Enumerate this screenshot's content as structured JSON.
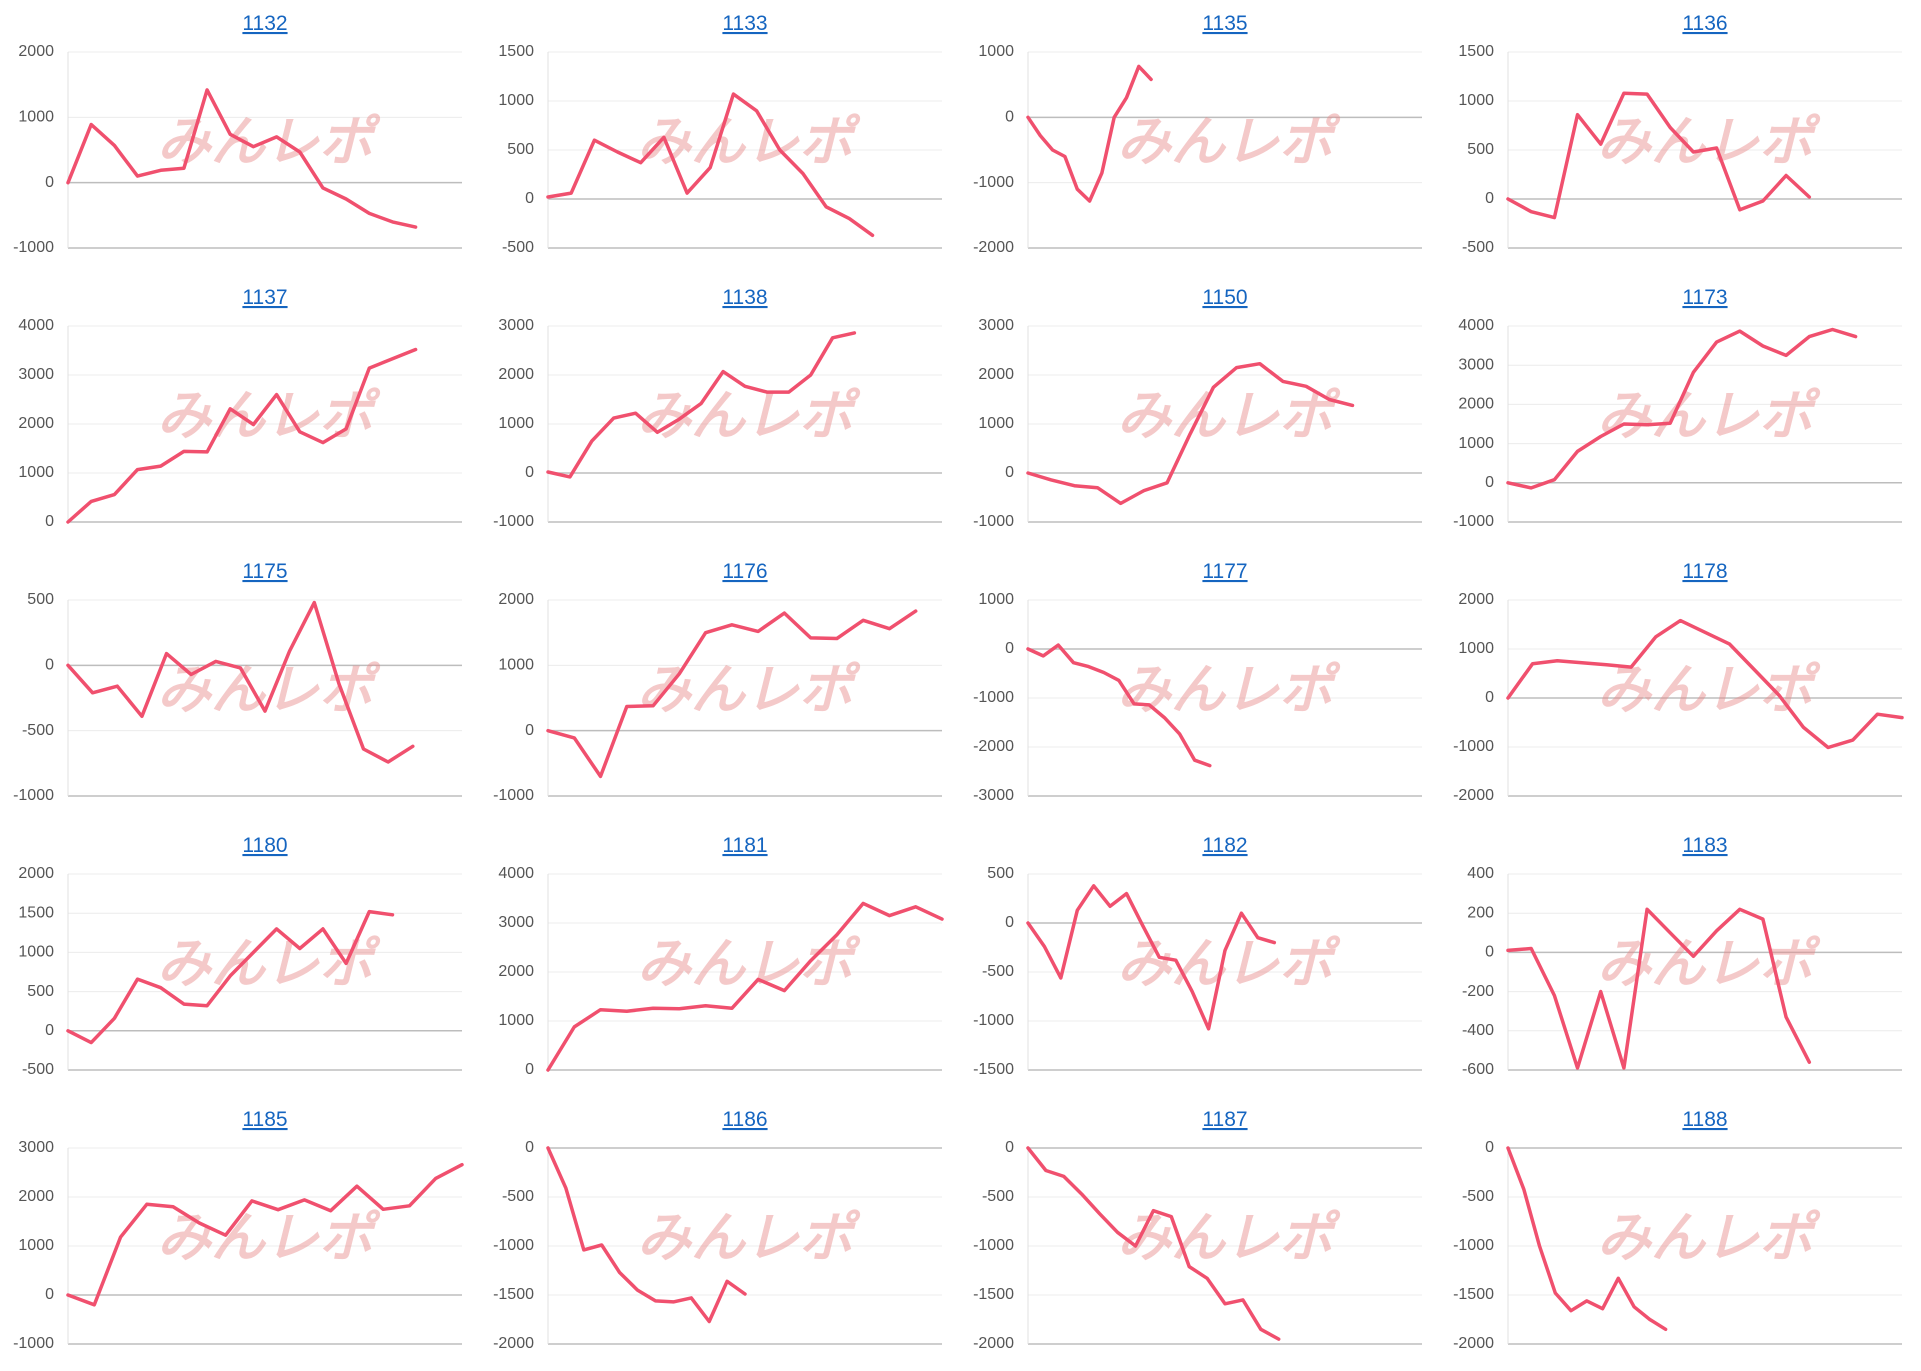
{
  "watermark": "みんレポ",
  "chart_data": [
    {
      "type": "line",
      "title": "1132",
      "color": "#f0506e",
      "grid": true,
      "ylim": [
        -1000,
        2000
      ],
      "yticks": [
        -1000,
        0,
        1000,
        2000
      ],
      "values": [
        0,
        890,
        570,
        100,
        190,
        220,
        1420,
        740,
        550,
        700,
        470,
        -80,
        -250,
        -470,
        -600,
        -680,
        null,
        null
      ]
    },
    {
      "type": "line",
      "title": "1133",
      "color": "#f0506e",
      "grid": true,
      "ylim": [
        -500,
        1500
      ],
      "yticks": [
        -500,
        0,
        500,
        1000,
        1500
      ],
      "values": [
        20,
        60,
        600,
        480,
        370,
        630,
        60,
        320,
        1070,
        900,
        500,
        260,
        -80,
        -200,
        -370,
        null,
        null,
        null
      ]
    },
    {
      "type": "line",
      "title": "1135",
      "color": "#f0506e",
      "grid": true,
      "ylim": [
        -2000,
        1000
      ],
      "yticks": [
        -2000,
        -1000,
        0,
        1000
      ],
      "values": [
        0,
        -280,
        -500,
        -600,
        -1100,
        -1280,
        -850,
        0,
        300,
        780,
        580,
        null,
        null,
        null,
        null,
        null,
        null,
        null,
        null,
        null,
        null,
        null,
        null,
        null,
        null,
        null,
        null,
        null,
        null,
        null,
        null,
        null,
        null
      ]
    },
    {
      "type": "line",
      "title": "1136",
      "color": "#f0506e",
      "grid": true,
      "ylim": [
        -500,
        1500
      ],
      "yticks": [
        -500,
        0,
        500,
        1000,
        1500
      ],
      "values": [
        0,
        -130,
        -190,
        860,
        560,
        1080,
        1070,
        730,
        480,
        520,
        -110,
        -20,
        240,
        20,
        null,
        null,
        null,
        null
      ]
    },
    {
      "type": "line",
      "title": "1137",
      "color": "#f0506e",
      "grid": true,
      "ylim": [
        0,
        4000
      ],
      "yticks": [
        0,
        1000,
        2000,
        3000,
        4000
      ],
      "values": [
        0,
        420,
        560,
        1070,
        1140,
        1440,
        1430,
        2310,
        1990,
        2600,
        1840,
        1620,
        1900,
        3140,
        3330,
        3520,
        null,
        null
      ]
    },
    {
      "type": "line",
      "title": "1138",
      "color": "#f0506e",
      "grid": true,
      "ylim": [
        -1000,
        3000
      ],
      "yticks": [
        -1000,
        0,
        1000,
        2000,
        3000
      ],
      "values": [
        20,
        -80,
        650,
        1120,
        1220,
        830,
        1100,
        1420,
        2070,
        1770,
        1650,
        1650,
        2000,
        2760,
        2860,
        null,
        null,
        null,
        null
      ]
    },
    {
      "type": "line",
      "title": "1150",
      "color": "#f0506e",
      "grid": true,
      "ylim": [
        -1000,
        3000
      ],
      "yticks": [
        -1000,
        0,
        1000,
        2000,
        3000
      ],
      "values": [
        0,
        -140,
        -260,
        -300,
        -620,
        -360,
        -200,
        800,
        1750,
        2150,
        2230,
        1870,
        1770,
        1500,
        1380,
        null,
        null,
        null
      ]
    },
    {
      "type": "line",
      "title": "1173",
      "color": "#f0506e",
      "grid": true,
      "ylim": [
        -1000,
        4000
      ],
      "yticks": [
        -1000,
        0,
        1000,
        2000,
        3000,
        4000
      ],
      "values": [
        0,
        -130,
        80,
        800,
        1180,
        1500,
        1480,
        1520,
        2820,
        3590,
        3870,
        3490,
        3250,
        3730,
        3910,
        3730,
        null,
        null
      ]
    },
    {
      "type": "line",
      "title": "1175",
      "color": "#f0506e",
      "grid": true,
      "ylim": [
        -1000,
        500
      ],
      "yticks": [
        -1000,
        -500,
        0,
        500
      ],
      "values": [
        0,
        -210,
        -160,
        -390,
        90,
        -70,
        30,
        -20,
        -350,
        110,
        480,
        -140,
        -640,
        -740,
        -620,
        null,
        null
      ]
    },
    {
      "type": "line",
      "title": "1176",
      "color": "#f0506e",
      "grid": true,
      "ylim": [
        -1000,
        2000
      ],
      "yticks": [
        -1000,
        0,
        1000,
        2000
      ],
      "values": [
        0,
        -110,
        -700,
        370,
        380,
        870,
        1500,
        1620,
        1520,
        1800,
        1420,
        1410,
        1690,
        1560,
        1830,
        null
      ]
    },
    {
      "type": "line",
      "title": "1177",
      "color": "#f0506e",
      "grid": true,
      "ylim": [
        -3000,
        1000
      ],
      "yticks": [
        -3000,
        -2000,
        -1000,
        0,
        1000
      ],
      "values": [
        0,
        -140,
        80,
        -280,
        -360,
        -480,
        -640,
        -1120,
        -1140,
        -1400,
        -1730,
        -2270,
        -2380,
        null,
        null,
        null,
        null,
        null,
        null,
        null,
        null,
        null,
        null,
        null,
        null,
        null,
        null
      ]
    },
    {
      "type": "line",
      "title": "1178",
      "color": "#f0506e",
      "grid": true,
      "ylim": [
        -2000,
        2000
      ],
      "yticks": [
        -2000,
        -1000,
        0,
        1000,
        2000
      ],
      "values": [
        0,
        700,
        760,
        720,
        680,
        630,
        1250,
        1580,
        1340,
        1100,
        580,
        60,
        -600,
        -1010,
        -860,
        -330,
        -400
      ]
    },
    {
      "type": "line",
      "title": "1180",
      "color": "#f0506e",
      "grid": true,
      "ylim": [
        -500,
        2000
      ],
      "yticks": [
        -500,
        0,
        500,
        1000,
        1500,
        2000
      ],
      "values": [
        0,
        -150,
        160,
        660,
        550,
        340,
        320,
        700,
        1000,
        1300,
        1050,
        1300,
        860,
        1520,
        1480,
        null,
        null,
        null
      ]
    },
    {
      "type": "line",
      "title": "1181",
      "color": "#f0506e",
      "grid": true,
      "ylim": [
        0,
        4000
      ],
      "yticks": [
        0,
        1000,
        2000,
        3000,
        4000
      ],
      "values": [
        0,
        880,
        1230,
        1200,
        1260,
        1250,
        1310,
        1260,
        1850,
        1620,
        2230,
        2760,
        3400,
        3150,
        3330,
        3080
      ]
    },
    {
      "type": "line",
      "title": "1182",
      "color": "#f0506e",
      "grid": true,
      "ylim": [
        -1500,
        500
      ],
      "yticks": [
        -1500,
        -1000,
        -500,
        0,
        500
      ],
      "values": [
        0,
        -240,
        -560,
        130,
        380,
        170,
        300,
        -30,
        -350,
        -380,
        -700,
        -1080,
        -280,
        100,
        -150,
        -200,
        null,
        null,
        null,
        null,
        null,
        null,
        null,
        null,
        null
      ]
    },
    {
      "type": "line",
      "title": "1183",
      "color": "#f0506e",
      "grid": true,
      "ylim": [
        -600,
        400
      ],
      "yticks": [
        -600,
        -400,
        -200,
        0,
        200,
        400
      ],
      "values": [
        10,
        20,
        -220,
        -590,
        -200,
        -590,
        220,
        100,
        -20,
        110,
        220,
        170,
        -330,
        -560,
        null,
        null,
        null,
        null
      ]
    },
    {
      "type": "line",
      "title": "1185",
      "color": "#f0506e",
      "grid": true,
      "ylim": [
        -1000,
        3000
      ],
      "yticks": [
        -1000,
        0,
        1000,
        2000,
        3000
      ],
      "values": [
        0,
        -200,
        1180,
        1850,
        1800,
        1470,
        1220,
        1920,
        1740,
        1940,
        1720,
        2220,
        1750,
        1820,
        2380,
        2660
      ]
    },
    {
      "type": "line",
      "title": "1186",
      "color": "#f0506e",
      "grid": true,
      "ylim": [
        -2000,
        0
      ],
      "yticks": [
        -2000,
        -1500,
        -1000,
        -500,
        0
      ],
      "values": [
        0,
        -410,
        -1040,
        -990,
        -1270,
        -1450,
        -1560,
        -1570,
        -1530,
        -1770,
        -1360,
        -1490,
        null,
        null,
        null,
        null,
        null,
        null,
        null,
        null,
        null,
        null,
        null
      ]
    },
    {
      "type": "line",
      "title": "1187",
      "color": "#f0506e",
      "grid": true,
      "ylim": [
        -2000,
        0
      ],
      "yticks": [
        -2000,
        -1500,
        -1000,
        -500,
        0
      ],
      "values": [
        0,
        -230,
        -290,
        -470,
        -670,
        -860,
        -1000,
        -640,
        -700,
        -1210,
        -1330,
        -1590,
        -1550,
        -1850,
        -1950,
        null,
        null,
        null,
        null,
        null,
        null,
        null,
        null
      ]
    },
    {
      "type": "line",
      "title": "1188",
      "color": "#f0506e",
      "grid": true,
      "ylim": [
        -2000,
        0
      ],
      "yticks": [
        -2000,
        -1500,
        -1000,
        -500,
        0
      ],
      "values": [
        0,
        -420,
        -1000,
        -1480,
        -1660,
        -1560,
        -1640,
        -1330,
        -1620,
        -1750,
        -1850,
        null,
        null,
        null,
        null,
        null,
        null,
        null,
        null,
        null,
        null,
        null,
        null,
        null,
        null,
        null
      ]
    }
  ]
}
